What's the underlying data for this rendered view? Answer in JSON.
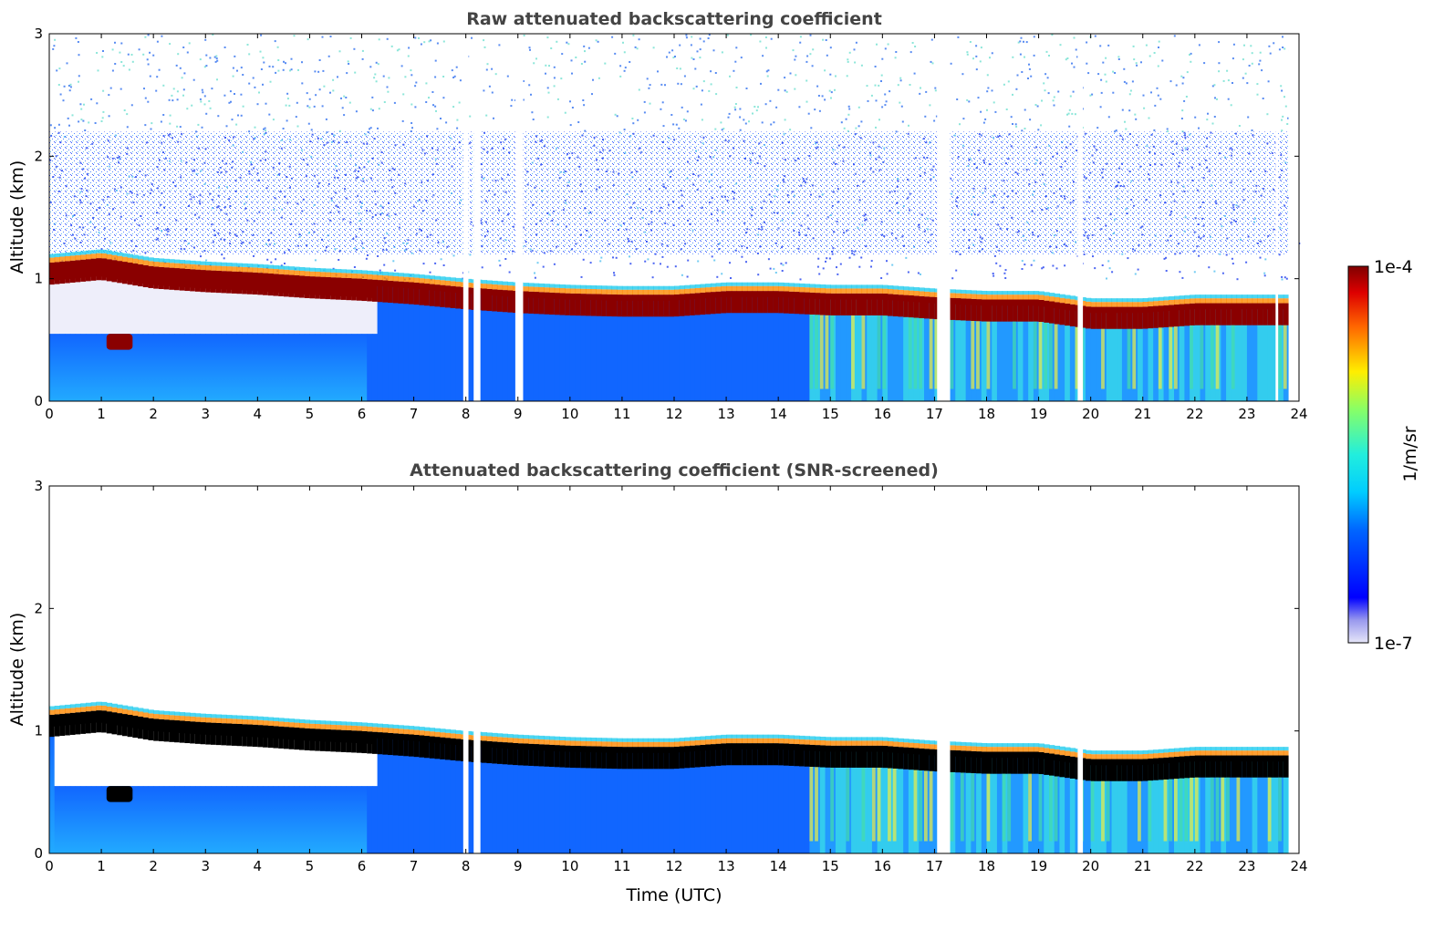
{
  "chart_data": [
    {
      "type": "heatmap",
      "title": "Raw attenuated backscattering coefficient",
      "xlabel": "",
      "ylabel": "Altitude (km)",
      "xlim": [
        0,
        24
      ],
      "ylim": [
        0,
        3
      ],
      "xticks": [
        "0",
        "1",
        "2",
        "3",
        "4",
        "5",
        "6",
        "7",
        "8",
        "9",
        "10",
        "11",
        "12",
        "13",
        "14",
        "15",
        "16",
        "17",
        "18",
        "19",
        "20",
        "21",
        "22",
        "23",
        "24"
      ],
      "yticks": [
        "0",
        "1",
        "2",
        "3"
      ],
      "data_gaps_hours": [
        [
          7.95,
          8.05
        ],
        [
          8.15,
          8.28
        ],
        [
          8.95,
          9.1
        ],
        [
          17.05,
          17.3
        ],
        [
          19.75,
          19.85
        ],
        [
          23.55,
          23.6
        ],
        [
          23.8,
          24
        ]
      ],
      "layers": [
        {
          "name": "",
          "description_hidden": true,
          "x": [
            0,
            1,
            2,
            3,
            4,
            5,
            6,
            7,
            8,
            9,
            10,
            11,
            12,
            13,
            14,
            15,
            16,
            17,
            18,
            19,
            20,
            21,
            22,
            23,
            23.8
          ],
          "y": [
            1.08,
            1.12,
            1.05,
            1.02,
            1.0,
            0.97,
            0.95,
            0.92,
            0.88,
            0.85,
            0.83,
            0.82,
            0.82,
            0.85,
            0.85,
            0.83,
            0.83,
            0.8,
            0.78,
            0.78,
            0.72,
            0.72,
            0.75,
            0.75,
            0.75
          ]
        }
      ]
    },
    {
      "type": "heatmap",
      "title": "Attenuated backscattering coefficient (SNR-screened)",
      "xlabel": "Time (UTC)",
      "ylabel": "Altitude (km)",
      "xlim": [
        0,
        24
      ],
      "ylim": [
        0,
        3
      ],
      "xticks": [
        "0",
        "1",
        "2",
        "3",
        "4",
        "5",
        "6",
        "7",
        "8",
        "9",
        "10",
        "11",
        "12",
        "13",
        "14",
        "15",
        "16",
        "17",
        "18",
        "19",
        "20",
        "21",
        "22",
        "23",
        "24"
      ],
      "yticks": [
        "0",
        "1",
        "2",
        "3"
      ],
      "data_gaps_hours": [
        [
          7.95,
          8.05
        ],
        [
          8.15,
          8.28
        ],
        [
          17.05,
          17.3
        ],
        [
          19.75,
          19.85
        ],
        [
          23.8,
          24
        ]
      ]
    }
  ],
  "colorbar": {
    "label": "1/m/sr",
    "max_label": "1e-4",
    "min_label": "1e-7",
    "scale": "log",
    "colormap": "jet",
    "low_color": "#e6e6f8",
    "high_color": "#800000",
    "saturated_color_screened": "#000000"
  }
}
